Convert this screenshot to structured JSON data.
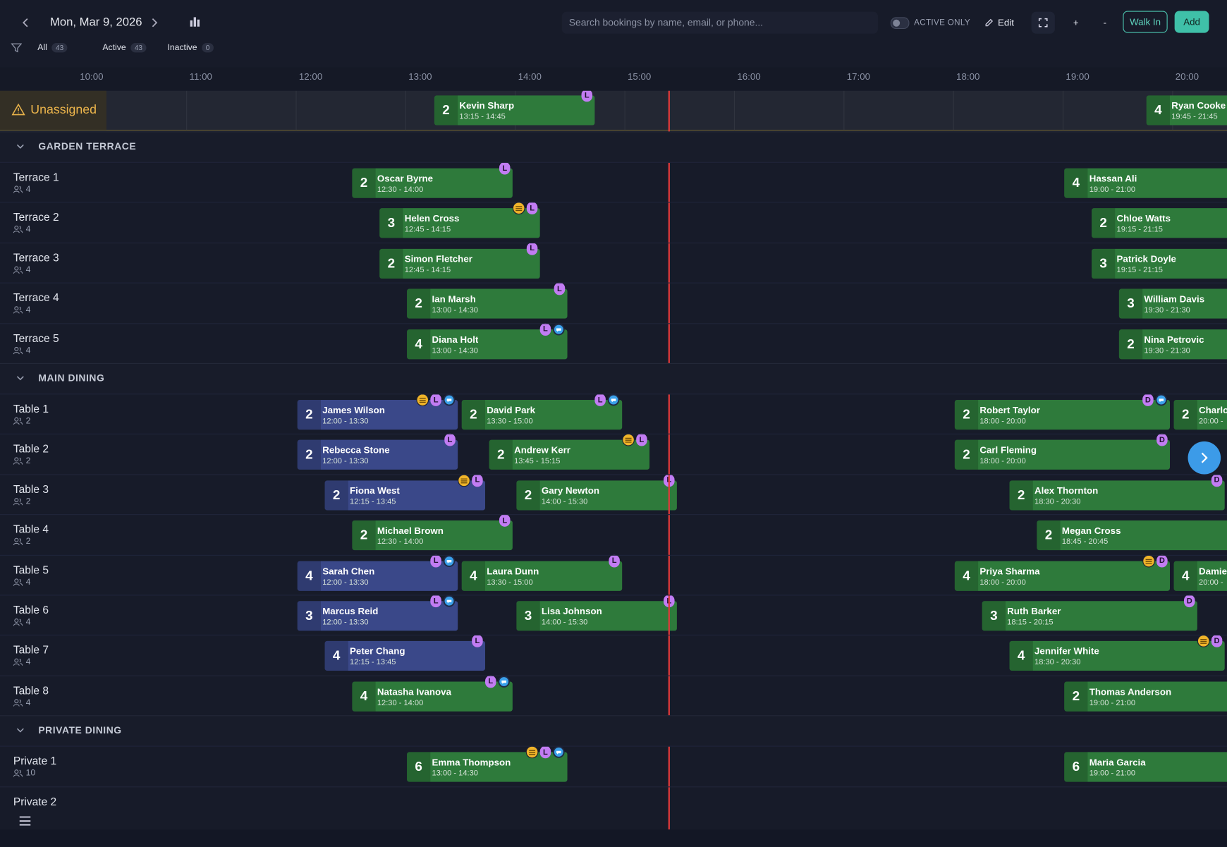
{
  "header": {
    "date": "Mon, Mar 9, 2026",
    "search_placeholder": "Search bookings by name, email, or phone...",
    "toggle_label": "ACTIVE ONLY",
    "edit": "Edit",
    "zoom_in": "+",
    "zoom_out": "-",
    "walk_in": "Walk In",
    "add": "Add"
  },
  "filters": [
    {
      "label": "All",
      "count": 43
    },
    {
      "label": "Active",
      "count": 43
    },
    {
      "label": "Inactive",
      "count": 0
    }
  ],
  "timeline": {
    "hours": [
      "10:00",
      "11:00",
      "12:00",
      "13:00",
      "14:00",
      "15:00",
      "16:00",
      "17:00",
      "18:00",
      "19:00",
      "20:00"
    ]
  },
  "unassigned": {
    "label": "Unassigned",
    "bookings": [
      {
        "party": 2,
        "name": "Kevin Sharp",
        "time": "13:15 - 14:45",
        "tags": [
          "L"
        ],
        "color": "#2e7a3b"
      },
      {
        "party": 4,
        "name": "Ryan Cooke",
        "time": "19:45 - 21:45",
        "tags": [],
        "color": "#2e7a3b"
      }
    ]
  },
  "sections": [
    {
      "name": "GARDEN TERRACE",
      "tables": [
        {
          "name": "Terrace 1",
          "capacity": 4,
          "bookings": [
            {
              "party": 2,
              "name": "Oscar Byrne",
              "time": "12:30 - 14:00",
              "tags": [
                "L"
              ],
              "color": "#2e7a3b"
            },
            {
              "party": 4,
              "name": "Hassan Ali",
              "time": "19:00 - 21:00",
              "tags": [],
              "color": "#2e7a3b"
            }
          ]
        },
        {
          "name": "Terrace 2",
          "capacity": 4,
          "bookings": [
            {
              "party": 3,
              "name": "Helen Cross",
              "time": "12:45 - 14:15",
              "tags": [
                "coin",
                "L"
              ],
              "color": "#2e7a3b"
            },
            {
              "party": 2,
              "name": "Chloe Watts",
              "time": "19:15 - 21:15",
              "tags": [],
              "color": "#2e7a3b"
            }
          ]
        },
        {
          "name": "Terrace 3",
          "capacity": 4,
          "bookings": [
            {
              "party": 2,
              "name": "Simon Fletcher",
              "time": "12:45 - 14:15",
              "tags": [
                "L"
              ],
              "color": "#2e7a3b"
            },
            {
              "party": 3,
              "name": "Patrick Doyle",
              "time": "19:15 - 21:15",
              "tags": [],
              "color": "#2e7a3b"
            }
          ]
        },
        {
          "name": "Terrace 4",
          "capacity": 4,
          "bookings": [
            {
              "party": 2,
              "name": "Ian Marsh",
              "time": "13:00 - 14:30",
              "tags": [
                "L"
              ],
              "color": "#2e7a3b"
            },
            {
              "party": 3,
              "name": "William Davis",
              "time": "19:30 - 21:30",
              "tags": [],
              "color": "#2e7a3b"
            }
          ]
        },
        {
          "name": "Terrace 5",
          "capacity": 4,
          "bookings": [
            {
              "party": 4,
              "name": "Diana Holt",
              "time": "13:00 - 14:30",
              "tags": [
                "L",
                "chat"
              ],
              "color": "#2e7a3b"
            },
            {
              "party": 2,
              "name": "Nina Petrovic",
              "time": "19:30 - 21:30",
              "tags": [],
              "color": "#2e7a3b"
            }
          ]
        }
      ]
    },
    {
      "name": "MAIN DINING",
      "tables": [
        {
          "name": "Table 1",
          "capacity": 2,
          "bookings": [
            {
              "party": 2,
              "name": "James Wilson",
              "time": "12:00 - 13:30",
              "tags": [
                "coin",
                "L",
                "chat"
              ],
              "color": "#3a4889"
            },
            {
              "party": 2,
              "name": "David Park",
              "time": "13:30 - 15:00",
              "tags": [
                "L",
                "chat"
              ],
              "color": "#2e7a3b"
            },
            {
              "party": 2,
              "name": "Robert Taylor",
              "time": "18:00 - 20:00",
              "tags": [
                "D",
                "chat"
              ],
              "color": "#2e7a3b"
            },
            {
              "party": 2,
              "name": "Charlo",
              "time": "20:00 -",
              "tags": [],
              "color": "#2e7a3b"
            }
          ]
        },
        {
          "name": "Table 2",
          "capacity": 2,
          "bookings": [
            {
              "party": 2,
              "name": "Rebecca Stone",
              "time": "12:00 - 13:30",
              "tags": [
                "L"
              ],
              "color": "#3a4889"
            },
            {
              "party": 2,
              "name": "Andrew Kerr",
              "time": "13:45 - 15:15",
              "tags": [
                "coin",
                "L"
              ],
              "color": "#2e7a3b"
            },
            {
              "party": 2,
              "name": "Carl Fleming",
              "time": "18:00 - 20:00",
              "tags": [
                "D"
              ],
              "color": "#2e7a3b"
            }
          ]
        },
        {
          "name": "Table 3",
          "capacity": 2,
          "bookings": [
            {
              "party": 2,
              "name": "Fiona West",
              "time": "12:15 - 13:45",
              "tags": [
                "coin",
                "L"
              ],
              "color": "#3a4889"
            },
            {
              "party": 2,
              "name": "Gary Newton",
              "time": "14:00 - 15:30",
              "tags": [
                "L"
              ],
              "color": "#2e7a3b"
            },
            {
              "party": 2,
              "name": "Alex Thornton",
              "time": "18:30 - 20:30",
              "tags": [
                "D"
              ],
              "color": "#2e7a3b"
            }
          ]
        },
        {
          "name": "Table 4",
          "capacity": 2,
          "bookings": [
            {
              "party": 2,
              "name": "Michael Brown",
              "time": "12:30 - 14:00",
              "tags": [
                "L"
              ],
              "color": "#2e7a3b"
            },
            {
              "party": 2,
              "name": "Megan Cross",
              "time": "18:45 - 20:45",
              "tags": [],
              "color": "#2e7a3b"
            }
          ]
        },
        {
          "name": "Table 5",
          "capacity": 4,
          "bookings": [
            {
              "party": 4,
              "name": "Sarah Chen",
              "time": "12:00 - 13:30",
              "tags": [
                "L",
                "chat"
              ],
              "color": "#3a4889"
            },
            {
              "party": 4,
              "name": "Laura Dunn",
              "time": "13:30 - 15:00",
              "tags": [
                "L"
              ],
              "color": "#2e7a3b"
            },
            {
              "party": 4,
              "name": "Priya Sharma",
              "time": "18:00 - 20:00",
              "tags": [
                "coin",
                "D"
              ],
              "color": "#2e7a3b"
            },
            {
              "party": 4,
              "name": "Damie",
              "time": "20:00 -",
              "tags": [],
              "color": "#2e7a3b"
            }
          ]
        },
        {
          "name": "Table 6",
          "capacity": 4,
          "bookings": [
            {
              "party": 3,
              "name": "Marcus Reid",
              "time": "12:00 - 13:30",
              "tags": [
                "L",
                "chat"
              ],
              "color": "#3a4889"
            },
            {
              "party": 3,
              "name": "Lisa Johnson",
              "time": "14:00 - 15:30",
              "tags": [
                "L"
              ],
              "color": "#2e7a3b"
            },
            {
              "party": 3,
              "name": "Ruth Barker",
              "time": "18:15 - 20:15",
              "tags": [
                "D"
              ],
              "color": "#2e7a3b"
            }
          ]
        },
        {
          "name": "Table 7",
          "capacity": 4,
          "bookings": [
            {
              "party": 4,
              "name": "Peter Chang",
              "time": "12:15 - 13:45",
              "tags": [
                "L"
              ],
              "color": "#3a4889"
            },
            {
              "party": 4,
              "name": "Jennifer White",
              "time": "18:30 - 20:30",
              "tags": [
                "coin",
                "D"
              ],
              "color": "#2e7a3b"
            }
          ]
        },
        {
          "name": "Table 8",
          "capacity": 4,
          "bookings": [
            {
              "party": 4,
              "name": "Natasha Ivanova",
              "time": "12:30 - 14:00",
              "tags": [
                "L",
                "chat"
              ],
              "color": "#2e7a3b"
            },
            {
              "party": 2,
              "name": "Thomas Anderson",
              "time": "19:00 - 21:00",
              "tags": [],
              "color": "#2e7a3b"
            }
          ]
        }
      ]
    },
    {
      "name": "PRIVATE DINING",
      "tables": [
        {
          "name": "Private 1",
          "capacity": 10,
          "bookings": [
            {
              "party": 6,
              "name": "Emma Thompson",
              "time": "13:00 - 14:30",
              "tags": [
                "coin",
                "L",
                "chat"
              ],
              "color": "#2e7a3b"
            },
            {
              "party": 6,
              "name": "Maria Garcia",
              "time": "19:00 - 21:00",
              "tags": [],
              "color": "#2e7a3b"
            }
          ]
        },
        {
          "name": "Private 2",
          "bookings": []
        }
      ]
    }
  ]
}
